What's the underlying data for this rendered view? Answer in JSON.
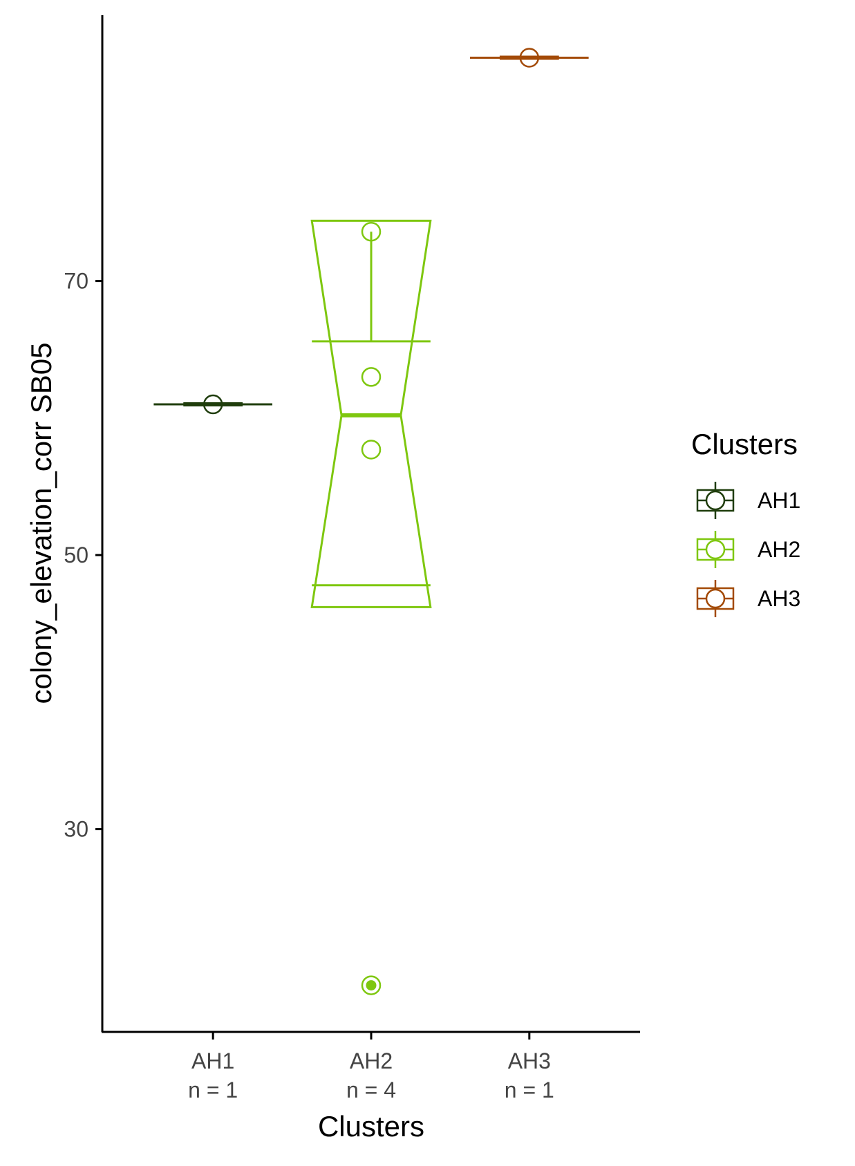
{
  "chart_data": {
    "type": "boxplot",
    "xlabel": "Clusters",
    "ylabel": "colony_elevation_corr SB05",
    "categories": [
      "AH1",
      "AH2",
      "AH3"
    ],
    "n_labels": [
      "n = 1",
      "n = 4",
      "n = 1"
    ],
    "y_ticks": [
      30,
      50,
      70
    ],
    "ylim": [
      15.2,
      89.4
    ],
    "grid": false,
    "legend": {
      "title": "Clusters",
      "position": "right",
      "entries": [
        "AH1",
        "AH2",
        "AH3"
      ]
    },
    "series": [
      {
        "category": "AH1",
        "color": "#1f3d0c",
        "min": 61.0,
        "q1": 61.0,
        "median": 61.0,
        "q3": 61.0,
        "max": 61.0,
        "notch_low": 61.0,
        "notch_high": 61.0,
        "points": [
          61.0
        ],
        "outliers": []
      },
      {
        "category": "AH2",
        "color": "#7ec70f",
        "min": 47.8,
        "q1": 47.8,
        "median": 60.2,
        "q3": 65.6,
        "max": 73.6,
        "notch_low": 46.2,
        "notch_high": 74.4,
        "points": [
          73.6,
          63.0,
          57.7
        ],
        "outliers": [
          18.6
        ]
      },
      {
        "category": "AH3",
        "color": "#a34a07",
        "min": 86.3,
        "q1": 86.3,
        "median": 86.3,
        "q3": 86.3,
        "max": 86.3,
        "notch_low": 86.3,
        "notch_high": 86.3,
        "points": [
          86.3
        ],
        "outliers": []
      }
    ]
  }
}
